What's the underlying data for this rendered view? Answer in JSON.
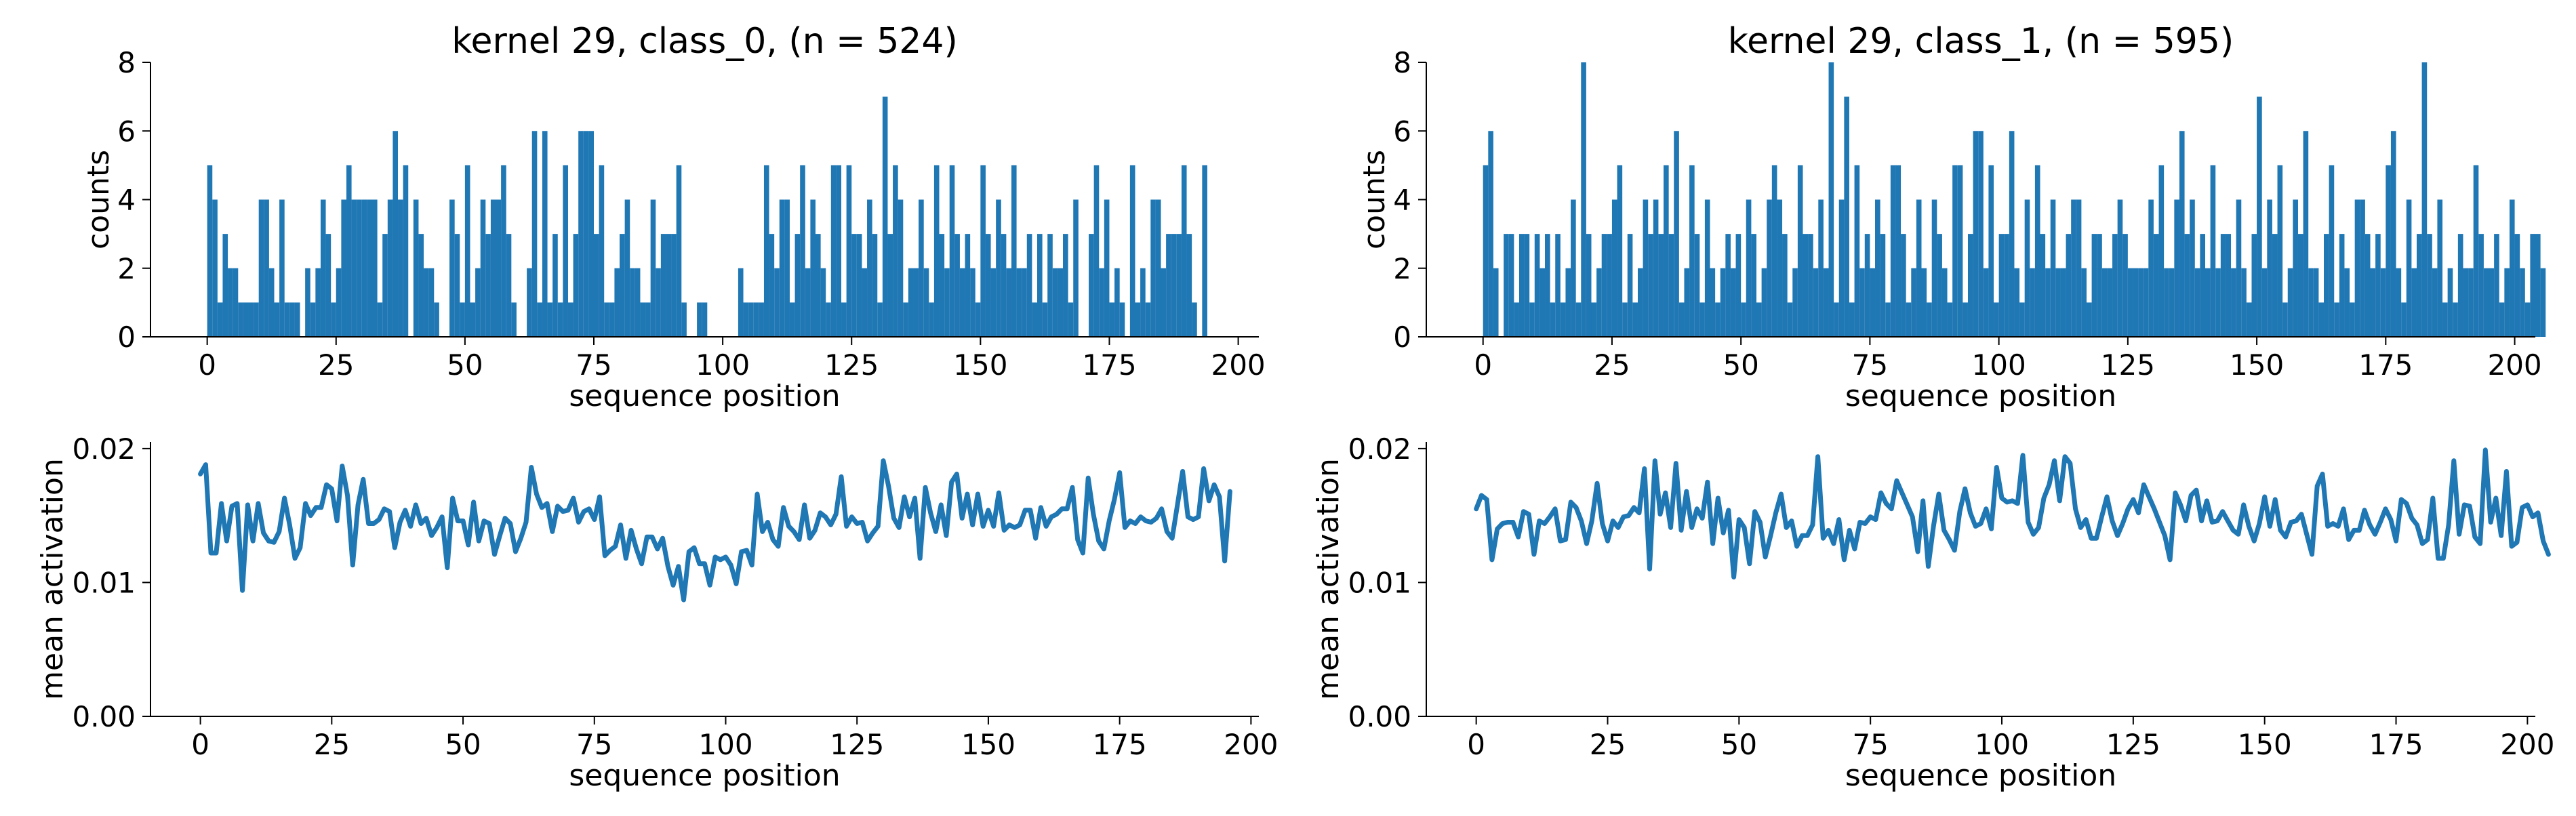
{
  "colors": {
    "series": "#1f77b4",
    "axis": "#000000"
  },
  "chart_data": [
    {
      "type": "bar",
      "title": "kernel 29, class_0, (n = 524)",
      "xlabel": "sequence position",
      "ylabel": "counts",
      "xlim": [
        -11,
        204
      ],
      "ylim": [
        0,
        8
      ],
      "xticks": [
        0,
        25,
        50,
        75,
        100,
        125,
        150,
        175,
        200
      ],
      "yticks": [
        0,
        2,
        4,
        6,
        8
      ],
      "grid": false,
      "values": [
        5,
        4,
        1,
        3,
        2,
        2,
        1,
        1,
        1,
        1,
        4,
        4,
        2,
        1,
        4,
        1,
        1,
        1,
        0,
        2,
        1,
        2,
        4,
        3,
        1,
        2,
        4,
        5,
        4,
        4,
        4,
        4,
        4,
        1,
        3,
        4,
        6,
        4,
        5,
        0,
        4,
        3,
        2,
        2,
        1,
        0,
        0,
        4,
        3,
        1,
        5,
        1,
        2,
        4,
        3,
        4,
        4,
        5,
        3,
        1,
        0,
        0,
        2,
        6,
        1,
        6,
        1,
        3,
        1,
        5,
        1,
        3,
        6,
        6,
        6,
        3,
        5,
        1,
        1,
        2,
        3,
        4,
        2,
        2,
        1,
        1,
        4,
        2,
        3,
        3,
        3,
        5,
        1,
        0,
        0,
        1,
        1,
        0,
        0,
        0,
        0,
        0,
        0,
        2,
        1,
        1,
        1,
        1,
        5,
        3,
        2,
        4,
        4,
        1,
        3,
        5,
        2,
        4,
        3,
        2,
        1,
        5,
        5,
        1,
        5,
        3,
        3,
        2,
        4,
        3,
        1,
        7,
        3,
        5,
        4,
        1,
        2,
        2,
        4,
        2,
        1,
        5,
        3,
        2,
        5,
        3,
        2,
        3,
        2,
        1,
        5,
        3,
        2,
        4,
        3,
        2,
        5,
        2,
        2,
        3,
        1,
        3,
        1,
        3,
        2,
        2,
        3,
        1,
        4,
        0,
        0,
        3,
        5,
        2,
        4,
        1,
        2,
        1,
        0,
        5,
        1,
        2,
        1,
        4,
        4,
        2,
        3,
        3,
        3,
        5,
        3,
        1,
        0,
        5
      ]
    },
    {
      "type": "line",
      "xlabel": "sequence position",
      "ylabel": "mean activation",
      "xlim": [
        -9.5,
        201.5
      ],
      "ylim": [
        0,
        0.0205
      ],
      "xticks": [
        0,
        25,
        50,
        75,
        100,
        125,
        150,
        175,
        200
      ],
      "yticks": [
        0,
        0.01,
        0.02
      ],
      "ytick_labels": [
        "0.00",
        "0.01",
        "0.02"
      ],
      "grid": false,
      "x_start": 0,
      "values": [
        0.0181,
        0.0188,
        0.0122,
        0.0122,
        0.0159,
        0.0131,
        0.0157,
        0.0159,
        0.0094,
        0.0158,
        0.0131,
        0.0159,
        0.0137,
        0.0131,
        0.013,
        0.0138,
        0.0163,
        0.0143,
        0.0118,
        0.0126,
        0.0159,
        0.015,
        0.0156,
        0.0156,
        0.0173,
        0.017,
        0.0146,
        0.0187,
        0.0165,
        0.0113,
        0.0158,
        0.0177,
        0.0144,
        0.0144,
        0.0147,
        0.0155,
        0.0153,
        0.0126,
        0.0145,
        0.0154,
        0.0142,
        0.0158,
        0.0144,
        0.0148,
        0.0135,
        0.0141,
        0.0149,
        0.0111,
        0.0163,
        0.0146,
        0.0146,
        0.0128,
        0.016,
        0.0131,
        0.0146,
        0.0144,
        0.0121,
        0.0135,
        0.0148,
        0.0144,
        0.0123,
        0.0133,
        0.0145,
        0.0186,
        0.0166,
        0.0156,
        0.0159,
        0.0138,
        0.0157,
        0.0153,
        0.0154,
        0.0163,
        0.0145,
        0.0153,
        0.0155,
        0.0147,
        0.0164,
        0.012,
        0.0124,
        0.0127,
        0.0143,
        0.0118,
        0.0139,
        0.0125,
        0.0114,
        0.0134,
        0.0134,
        0.0125,
        0.0133,
        0.0112,
        0.0098,
        0.0112,
        0.0087,
        0.0123,
        0.0126,
        0.0114,
        0.0114,
        0.0098,
        0.0119,
        0.0117,
        0.0119,
        0.0113,
        0.0099,
        0.0123,
        0.0124,
        0.0113,
        0.0166,
        0.0138,
        0.0145,
        0.0132,
        0.0127,
        0.0156,
        0.0142,
        0.0138,
        0.0132,
        0.0158,
        0.0133,
        0.0139,
        0.0152,
        0.0149,
        0.0143,
        0.0151,
        0.0179,
        0.0142,
        0.0149,
        0.0144,
        0.0145,
        0.0131,
        0.0137,
        0.0142,
        0.0191,
        0.0172,
        0.0148,
        0.0141,
        0.0164,
        0.0149,
        0.0163,
        0.0118,
        0.0171,
        0.0152,
        0.0138,
        0.0158,
        0.0135,
        0.0175,
        0.0181,
        0.0148,
        0.0166,
        0.0143,
        0.0166,
        0.0142,
        0.0154,
        0.0142,
        0.0167,
        0.0139,
        0.0143,
        0.0141,
        0.0143,
        0.0154,
        0.0154,
        0.0133,
        0.0156,
        0.0142,
        0.0149,
        0.0151,
        0.0155,
        0.0155,
        0.0171,
        0.0132,
        0.0122,
        0.0178,
        0.0151,
        0.0131,
        0.0125,
        0.0146,
        0.0162,
        0.0182,
        0.0141,
        0.0146,
        0.0144,
        0.0149,
        0.0146,
        0.0145,
        0.0148,
        0.0155,
        0.0138,
        0.0133,
        0.0158,
        0.0183,
        0.0149,
        0.0147,
        0.0149,
        0.0185,
        0.0161,
        0.0173,
        0.0164,
        0.0116,
        0.0168
      ]
    },
    {
      "type": "bar",
      "title": "kernel 29, class_1, (n = 595)",
      "xlabel": "sequence position",
      "ylabel": "counts",
      "xlim": [
        -11,
        204
      ],
      "ylim": [
        0,
        8
      ],
      "xticks": [
        0,
        25,
        50,
        75,
        100,
        125,
        150,
        175,
        200
      ],
      "yticks": [
        0,
        2,
        4,
        6,
        8
      ],
      "grid": false,
      "values": [
        5,
        6,
        2,
        0,
        3,
        3,
        1,
        3,
        3,
        1,
        3,
        2,
        3,
        1,
        3,
        1,
        2,
        4,
        1,
        8,
        3,
        1,
        2,
        3,
        3,
        4,
        5,
        1,
        3,
        1,
        2,
        4,
        3,
        4,
        3,
        5,
        3,
        6,
        1,
        2,
        5,
        3,
        1,
        4,
        2,
        1,
        2,
        3,
        2,
        3,
        1,
        4,
        3,
        1,
        2,
        4,
        5,
        4,
        3,
        1,
        2,
        5,
        3,
        3,
        2,
        4,
        2,
        8,
        1,
        4,
        7,
        1,
        5,
        2,
        3,
        2,
        4,
        3,
        1,
        5,
        5,
        3,
        1,
        2,
        4,
        2,
        1,
        4,
        3,
        2,
        1,
        5,
        5,
        1,
        3,
        6,
        6,
        2,
        5,
        1,
        3,
        3,
        6,
        2,
        1,
        4,
        2,
        5,
        3,
        2,
        4,
        2,
        2,
        3,
        4,
        4,
        2,
        1,
        3,
        3,
        2,
        2,
        3,
        4,
        3,
        2,
        2,
        2,
        2,
        4,
        3,
        5,
        2,
        2,
        4,
        6,
        3,
        4,
        2,
        3,
        2,
        5,
        2,
        3,
        3,
        2,
        4,
        2,
        1,
        3,
        7,
        2,
        4,
        3,
        5,
        1,
        2,
        4,
        3,
        6,
        2,
        2,
        1,
        3,
        5,
        1,
        3,
        2,
        1,
        4,
        4,
        3,
        2,
        3,
        2,
        5,
        6,
        2,
        1,
        4,
        2,
        3,
        8,
        3,
        2,
        4,
        1,
        2,
        1,
        3,
        2,
        2,
        5,
        3,
        2,
        2,
        3,
        1,
        2,
        4,
        3,
        2,
        1,
        3,
        3,
        2
      ]
    },
    {
      "type": "line",
      "xlabel": "sequence position",
      "ylabel": "mean activation",
      "xlim": [
        -9.5,
        201.5
      ],
      "ylim": [
        0,
        0.0205
      ],
      "xticks": [
        0,
        25,
        50,
        75,
        100,
        125,
        150,
        175,
        200
      ],
      "yticks": [
        0,
        0.01,
        0.02
      ],
      "ytick_labels": [
        "0.00",
        "0.01",
        "0.02"
      ],
      "grid": false,
      "x_start": 0,
      "values": [
        0.0155,
        0.0165,
        0.0162,
        0.0117,
        0.014,
        0.0144,
        0.0145,
        0.0145,
        0.0134,
        0.0153,
        0.0151,
        0.0121,
        0.0146,
        0.0144,
        0.0149,
        0.0155,
        0.0131,
        0.0132,
        0.016,
        0.0156,
        0.0146,
        0.0129,
        0.0146,
        0.0174,
        0.0144,
        0.0131,
        0.0146,
        0.0141,
        0.0149,
        0.015,
        0.0156,
        0.0152,
        0.0185,
        0.011,
        0.0191,
        0.0151,
        0.0167,
        0.0141,
        0.0189,
        0.0139,
        0.0168,
        0.0141,
        0.0155,
        0.0148,
        0.0175,
        0.0129,
        0.0163,
        0.0137,
        0.0154,
        0.0104,
        0.0147,
        0.0141,
        0.0114,
        0.0153,
        0.0145,
        0.0119,
        0.0135,
        0.0152,
        0.0166,
        0.0141,
        0.0146,
        0.0127,
        0.0135,
        0.0135,
        0.0143,
        0.0194,
        0.0133,
        0.0139,
        0.0129,
        0.0147,
        0.0117,
        0.0139,
        0.0125,
        0.0145,
        0.0144,
        0.0149,
        0.0147,
        0.0167,
        0.0159,
        0.0155,
        0.0176,
        0.0167,
        0.0158,
        0.0149,
        0.0123,
        0.0161,
        0.0112,
        0.0142,
        0.0166,
        0.0139,
        0.0132,
        0.0124,
        0.0153,
        0.017,
        0.0152,
        0.0142,
        0.0144,
        0.0155,
        0.014,
        0.0186,
        0.0163,
        0.016,
        0.0161,
        0.0159,
        0.0195,
        0.0145,
        0.0136,
        0.0141,
        0.0163,
        0.0173,
        0.0191,
        0.0161,
        0.0194,
        0.0189,
        0.0155,
        0.0141,
        0.0147,
        0.0133,
        0.0133,
        0.0149,
        0.0164,
        0.0146,
        0.0135,
        0.0144,
        0.0155,
        0.0162,
        0.0152,
        0.0173,
        0.0164,
        0.0155,
        0.0145,
        0.0135,
        0.0117,
        0.0167,
        0.0158,
        0.0146,
        0.0165,
        0.0169,
        0.0146,
        0.0161,
        0.0145,
        0.0146,
        0.0153,
        0.0146,
        0.0139,
        0.0136,
        0.0158,
        0.0142,
        0.0131,
        0.0144,
        0.0164,
        0.0142,
        0.0162,
        0.0139,
        0.0134,
        0.0145,
        0.0146,
        0.0151,
        0.0136,
        0.0121,
        0.0172,
        0.0181,
        0.0142,
        0.0144,
        0.0142,
        0.0155,
        0.0132,
        0.0139,
        0.0139,
        0.0154,
        0.0143,
        0.0136,
        0.0145,
        0.0155,
        0.0147,
        0.0131,
        0.0162,
        0.0159,
        0.0148,
        0.0143,
        0.0129,
        0.0132,
        0.0163,
        0.0118,
        0.0118,
        0.0143,
        0.0191,
        0.0136,
        0.0158,
        0.0157,
        0.0134,
        0.0129,
        0.0199,
        0.0145,
        0.0163,
        0.0135,
        0.0183,
        0.0127,
        0.013,
        0.0156,
        0.0158,
        0.0149,
        0.0152,
        0.0131,
        0.0121
      ]
    }
  ]
}
